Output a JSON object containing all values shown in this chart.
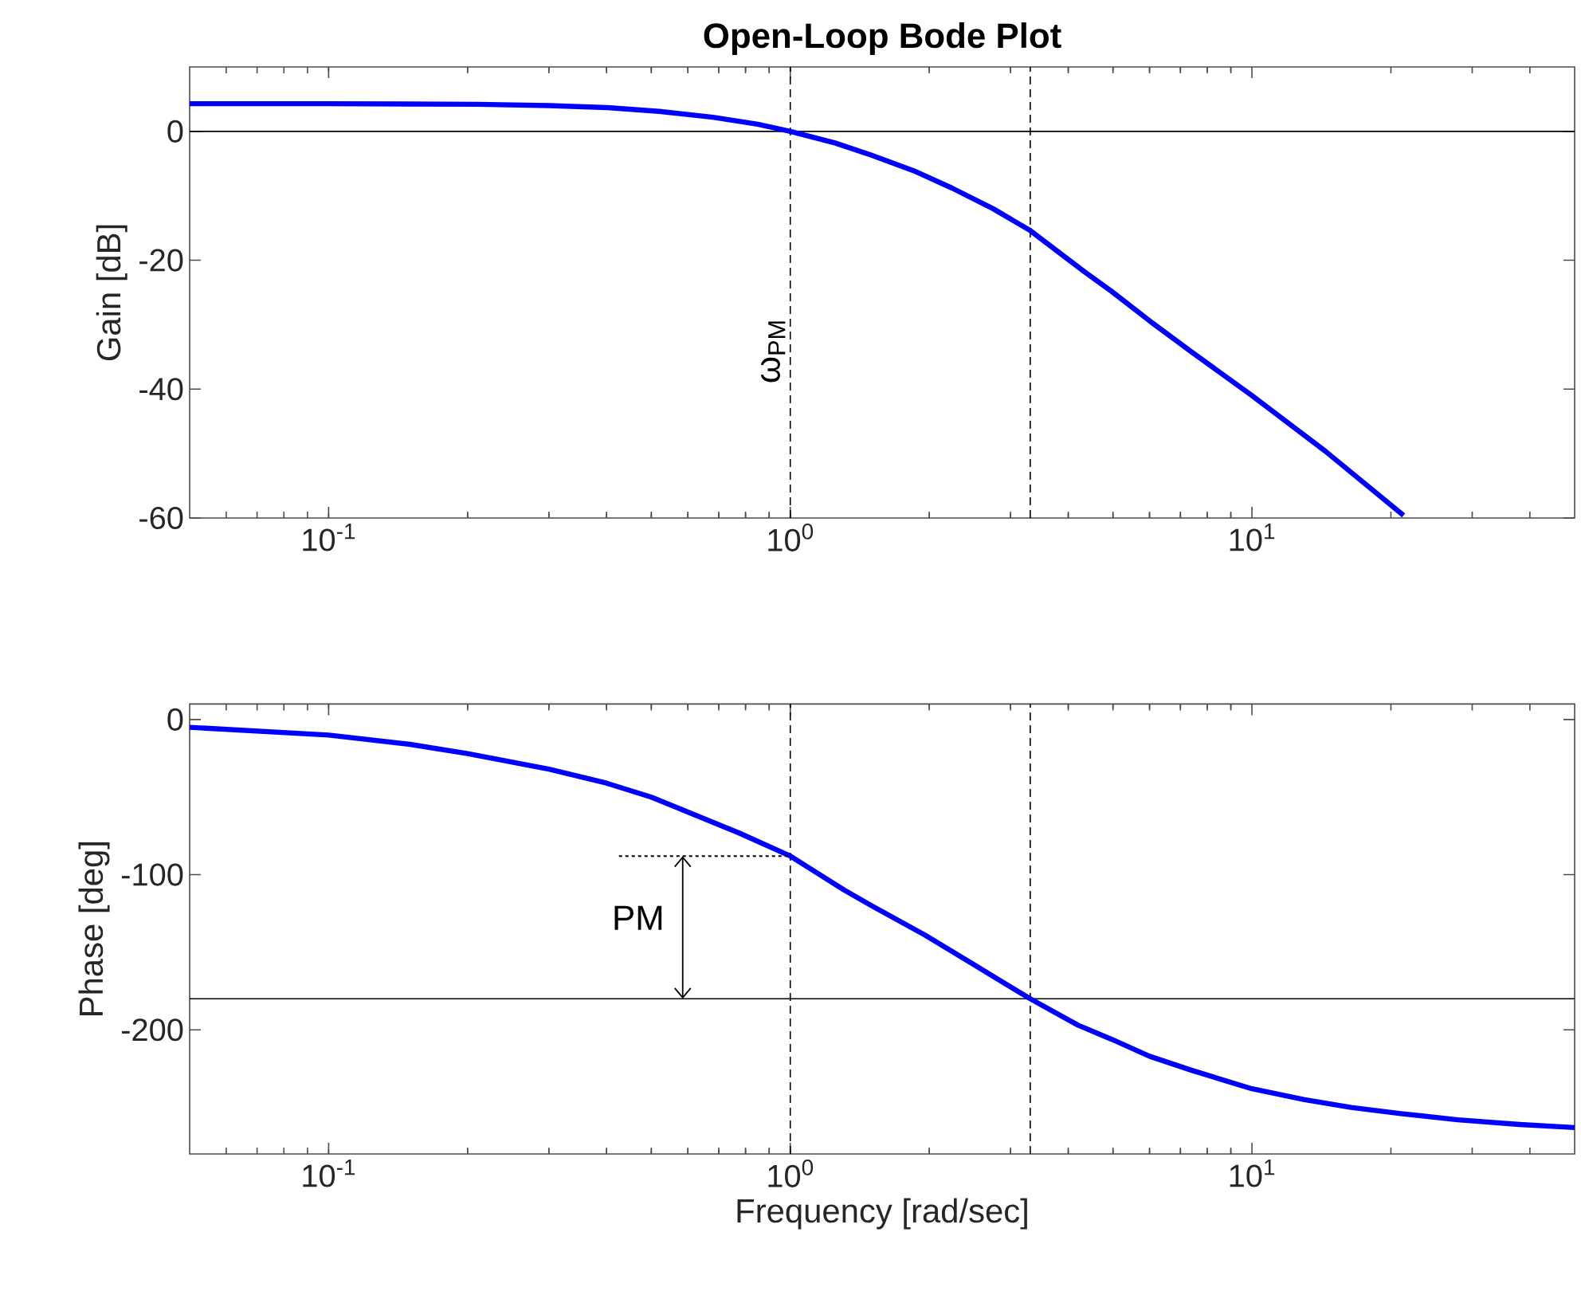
{
  "chart_data": [
    {
      "type": "line",
      "title": "Open-Loop Bode Plot",
      "ylabel": "Gain [dB]",
      "log": "x",
      "xlim": [
        0.05,
        50
      ],
      "ylim": [
        -60,
        10
      ],
      "yticks": [
        -60,
        -40,
        -20,
        0
      ],
      "xticks": [
        {
          "value": 0.1,
          "label": "10$^{-1}$"
        },
        {
          "value": 1,
          "label": "10$^{0}$"
        },
        {
          "value": 10,
          "label": "10$^{1}$"
        },
        {
          "value": 0.06,
          "label": null
        },
        {
          "value": 0.07,
          "label": null
        },
        {
          "value": 0.08,
          "label": null
        },
        {
          "value": 0.09,
          "label": null
        },
        {
          "value": 0.2,
          "label": null
        },
        {
          "value": 0.3,
          "label": null
        },
        {
          "value": 0.4,
          "label": null
        },
        {
          "value": 0.5,
          "label": null
        },
        {
          "value": 0.6,
          "label": null
        },
        {
          "value": 0.7,
          "label": null
        },
        {
          "value": 0.8,
          "label": null
        },
        {
          "value": 0.9,
          "label": null
        },
        {
          "value": 2,
          "label": null
        },
        {
          "value": 3,
          "label": null
        },
        {
          "value": 4,
          "label": null
        },
        {
          "value": 5,
          "label": null
        },
        {
          "value": 6,
          "label": null
        },
        {
          "value": 7,
          "label": null
        },
        {
          "value": 8,
          "label": null
        },
        {
          "value": 9,
          "label": null
        },
        {
          "value": 20,
          "label": null
        },
        {
          "value": 30,
          "label": null
        },
        {
          "value": 40,
          "label": null
        }
      ],
      "x": [
        0.05,
        0.1,
        0.21,
        0.3,
        0.4,
        0.52,
        0.68,
        0.85,
        1,
        1.25,
        1.5,
        1.85,
        2.24,
        2.75,
        3.31,
        4.34,
        4.96,
        6,
        7.39,
        10,
        14.4,
        21.3
      ],
      "series": [
        {
          "color": "#0000ff",
          "values": [
            4.3,
            4.3,
            4.2,
            4.0,
            3.7,
            3.1,
            2.2,
            1.1,
            0,
            -1.8,
            -3.7,
            -6.1,
            -8.8,
            -12.0,
            -15.4,
            -21.8,
            -24.8,
            -29.4,
            -34.2,
            -41.0,
            -49.6,
            -59.6
          ]
        }
      ],
      "ref_lines": [
        {
          "axis": "y",
          "value": 0,
          "color": "#000000",
          "line_style": "solid"
        },
        {
          "axis": "x",
          "value": 1,
          "label": "ω$_{PM}$",
          "color": "#000000",
          "line_style": "dashed"
        },
        {
          "axis": "x",
          "value": 3.31,
          "color": "#000000",
          "line_style": "dashed"
        }
      ],
      "grid": false,
      "marker": "none",
      "line_style": "solid"
    },
    {
      "type": "line",
      "ylabel": "Phase [deg]",
      "xlabel": "Frequency [rad/sec]",
      "log": "x",
      "xlim": [
        0.05,
        50
      ],
      "ylim": [
        -280,
        10
      ],
      "yticks": [
        -200,
        -100,
        0
      ],
      "xticks": [
        {
          "value": 0.1,
          "label": "10$^{-1}$"
        },
        {
          "value": 1,
          "label": "10$^{0}$"
        },
        {
          "value": 10,
          "label": "10$^{1}$"
        },
        {
          "value": 0.06,
          "label": null
        },
        {
          "value": 0.07,
          "label": null
        },
        {
          "value": 0.08,
          "label": null
        },
        {
          "value": 0.09,
          "label": null
        },
        {
          "value": 0.2,
          "label": null
        },
        {
          "value": 0.3,
          "label": null
        },
        {
          "value": 0.4,
          "label": null
        },
        {
          "value": 0.5,
          "label": null
        },
        {
          "value": 0.6,
          "label": null
        },
        {
          "value": 0.7,
          "label": null
        },
        {
          "value": 0.8,
          "label": null
        },
        {
          "value": 0.9,
          "label": null
        },
        {
          "value": 2,
          "label": null
        },
        {
          "value": 3,
          "label": null
        },
        {
          "value": 4,
          "label": null
        },
        {
          "value": 5,
          "label": null
        },
        {
          "value": 6,
          "label": null
        },
        {
          "value": 7,
          "label": null
        },
        {
          "value": 8,
          "label": null
        },
        {
          "value": 9,
          "label": null
        },
        {
          "value": 20,
          "label": null
        },
        {
          "value": 30,
          "label": null
        },
        {
          "value": 40,
          "label": null
        }
      ],
      "x": [
        0.05,
        0.1,
        0.15,
        0.2,
        0.3,
        0.4,
        0.5,
        0.593,
        0.773,
        1,
        1.31,
        1.5,
        1.96,
        2.5,
        3.31,
        4.2,
        4.96,
        6,
        7.39,
        10,
        13,
        16.4,
        21,
        27.9,
        38,
        50
      ],
      "series": [
        {
          "color": "#0000ff",
          "values": [
            -5,
            -10,
            -16,
            -22,
            -32,
            -41,
            -50,
            -59,
            -73,
            -88,
            -110,
            -120,
            -139,
            -158,
            -180,
            -197,
            -206,
            -217,
            -226,
            -238,
            -245,
            -250,
            -254,
            -258,
            -261,
            -263
          ]
        }
      ],
      "ref_lines": [
        {
          "axis": "y",
          "value": -180,
          "color": "#000000",
          "line_style": "solid"
        },
        {
          "axis": "x",
          "value": 1,
          "color": "#000000",
          "line_style": "dashed"
        },
        {
          "axis": "x",
          "value": 3.31,
          "color": "#000000",
          "line_style": "dashed"
        }
      ],
      "annotations": [
        "PM"
      ],
      "grid": false,
      "marker": "none",
      "line_style": "solid"
    }
  ]
}
